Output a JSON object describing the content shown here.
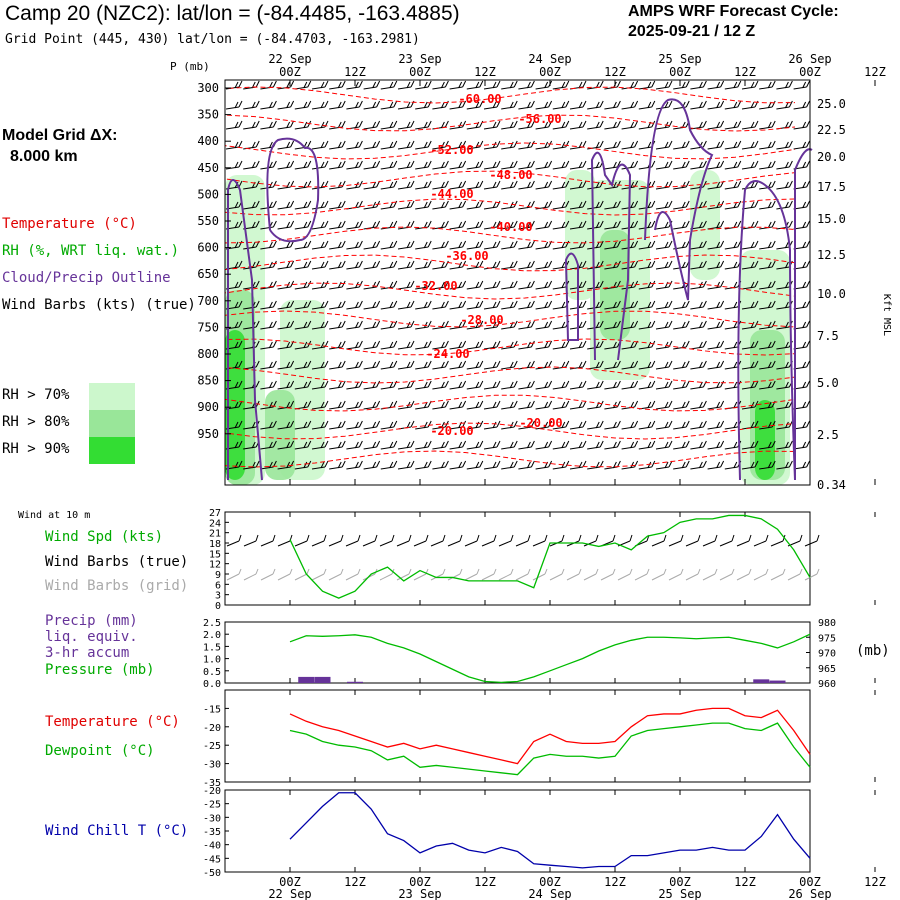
{
  "header": {
    "title": "Camp 20 (NZC2):  lat/lon = (-84.4485, -163.4885)",
    "grid_point": "Grid Point (445, 430) lat/lon = (-84.4703, -163.2981)",
    "cycle_label": "AMPS WRF Forecast Cycle:",
    "cycle_value": "2025-09-21 / 12  Z"
  },
  "model_grid": {
    "label": "Model Grid ΔX:",
    "value": "8.000 km"
  },
  "legend_upper": {
    "temperature": "Temperature (°C)",
    "rh": "RH (%, WRT liq. wat.)",
    "cloud": "Cloud/Precip Outline",
    "wind": "Wind Barbs (kts) (true)",
    "rh70": "RH > 70%",
    "rh80": "RH > 80%",
    "rh90": "RH > 90%"
  },
  "legend_wind10": {
    "title": "Wind at 10 m",
    "spd": "Wind Spd (kts)",
    "barbs_true": "Wind Barbs (true)",
    "barbs_grid": "Wind Barbs (grid)"
  },
  "legend_precip": {
    "precip": "Precip (mm)",
    "liq": "liq. equiv.",
    "accum": "3-hr accum",
    "pressure": "Pressure (mb)",
    "mb_unit": "(mb)"
  },
  "legend_temp": {
    "temperature": "Temperature (°C)",
    "dewpoint": "Dewpoint (°C)"
  },
  "legend_chill": {
    "chill": "Wind Chill T (°C)"
  },
  "time_axis": {
    "top_axis_label": "P (mb)",
    "hour_labels": [
      "00Z",
      "12Z",
      "00Z",
      "12Z",
      "00Z",
      "12Z",
      "00Z",
      "12Z",
      "00Z",
      "12Z"
    ],
    "day_labels": [
      "22 Sep",
      "23 Sep",
      "24 Sep",
      "25 Sep",
      "26 Sep"
    ]
  },
  "colors": {
    "temperature": "#ff0000",
    "rh70": "#ccf7cc",
    "rh80": "#99e699",
    "rh90": "#33dd33",
    "cloud": "#663399",
    "wind_spd": "#00bb00",
    "wind_grid": "#aaaaaa",
    "precip": "#663399",
    "pressure": "#00bb00",
    "dewpoint": "#00bb00",
    "wind_chill": "#0000aa"
  },
  "chart_data": [
    {
      "type": "heatmap",
      "panel": "upper-air time-height",
      "ylabel": "P (mb)",
      "y2label": "Kft MSL",
      "pressure_ticks": [
        "300",
        "350",
        "400",
        "450",
        "500",
        "550",
        "600",
        "650",
        "700",
        "750",
        "800",
        "850",
        "900",
        "950"
      ],
      "height_ticks": [
        "25.0",
        "22.5",
        "20.0",
        "17.5",
        "15.0",
        "12.5",
        "10.0",
        "7.5",
        "5.0",
        "2.5",
        "0.34"
      ],
      "temperature_contour_labels": [
        "-60.00",
        "-56.00",
        "-52.00",
        "-48.00",
        "-44.00",
        "-40.00",
        "-36.00",
        "-32.00",
        "-28.00",
        "-24.00",
        "-20.00",
        "-20.00"
      ]
    },
    {
      "type": "line",
      "panel": "10 m wind speed",
      "yticks": [
        "27",
        "24",
        "21",
        "18",
        "15",
        "12",
        "9",
        "6",
        "3",
        "0"
      ],
      "ylim": [
        0,
        27
      ],
      "series": [
        {
          "name": "Wind Spd (kts)",
          "x": [
            0,
            3,
            6,
            9,
            12,
            15,
            18,
            21,
            24,
            27,
            30,
            33,
            36,
            39,
            42,
            45,
            48,
            51,
            54,
            57,
            60,
            63,
            66,
            69,
            72,
            75,
            78,
            81,
            84,
            87,
            90,
            93,
            96
          ],
          "values": [
            19,
            9,
            4,
            2,
            4,
            9,
            11,
            7,
            10,
            8,
            8,
            7,
            7,
            7,
            7,
            5,
            18,
            18,
            18,
            17,
            18,
            16,
            20,
            21,
            24,
            25,
            25,
            26,
            26,
            25,
            22,
            16,
            8
          ]
        }
      ]
    },
    {
      "type": "line",
      "panel": "precipitation and pressure",
      "yticks_left": [
        "2.5",
        "2.0",
        "1.5",
        "1.0",
        "0.5",
        "0.0"
      ],
      "yticks_right": [
        "980",
        "975",
        "970",
        "965",
        "960"
      ],
      "ylim_left": [
        0,
        2.5
      ],
      "ylim_right": [
        960,
        980
      ],
      "series": [
        {
          "name": "Pressure (mb)",
          "x": [
            0,
            3,
            6,
            9,
            12,
            15,
            18,
            21,
            24,
            27,
            30,
            33,
            36,
            39,
            42,
            45,
            48,
            51,
            54,
            57,
            60,
            63,
            66,
            69,
            72,
            75,
            78,
            81,
            84,
            87,
            90,
            93,
            96
          ],
          "values": [
            973.5,
            975.5,
            975.3,
            975.5,
            975.8,
            975,
            973,
            971.5,
            969.5,
            967,
            964.5,
            962,
            960.5,
            960.2,
            960.5,
            962,
            964,
            966,
            968,
            970.5,
            972.5,
            974,
            975,
            975,
            974.8,
            974.5,
            974.8,
            975,
            974,
            973,
            971.5,
            973.5,
            976
          ]
        },
        {
          "name": "Precip (mm)",
          "x": [
            3,
            6,
            12,
            87,
            90
          ],
          "values": [
            0.25,
            0.25,
            0.05,
            0.15,
            0.1
          ]
        }
      ]
    },
    {
      "type": "line",
      "panel": "temperature and dewpoint",
      "yticks": [
        "-15",
        "-20",
        "-25",
        "-30",
        "-35"
      ],
      "ylim": [
        -35,
        -10
      ],
      "series": [
        {
          "name": "Temperature (°C)",
          "x": [
            0,
            3,
            6,
            9,
            12,
            15,
            18,
            21,
            24,
            27,
            30,
            33,
            36,
            39,
            42,
            45,
            48,
            51,
            54,
            57,
            60,
            63,
            66,
            69,
            72,
            75,
            78,
            81,
            84,
            87,
            90,
            93,
            96
          ],
          "values": [
            -16.5,
            -18.5,
            -20,
            -21,
            -22.5,
            -24,
            -25.5,
            -24.5,
            -26,
            -25,
            -26,
            -27,
            -28,
            -29,
            -30,
            -24,
            -22,
            -24,
            -24.5,
            -24.5,
            -24,
            -20,
            -17,
            -16.5,
            -16.5,
            -15.5,
            -15,
            -15,
            -17,
            -17.5,
            -15.5,
            -21,
            -27.5
          ]
        },
        {
          "name": "Dewpoint (°C)",
          "x": [
            0,
            3,
            6,
            9,
            12,
            15,
            18,
            21,
            24,
            27,
            30,
            33,
            36,
            39,
            42,
            45,
            48,
            51,
            54,
            57,
            60,
            63,
            66,
            69,
            72,
            75,
            78,
            81,
            84,
            87,
            90,
            93,
            96
          ],
          "values": [
            -21,
            -22,
            -24,
            -25,
            -25.5,
            -26.5,
            -29,
            -28,
            -31,
            -30.5,
            -31,
            -31.5,
            -32,
            -32.5,
            -33,
            -28.5,
            -27.5,
            -28,
            -28,
            -28.5,
            -28,
            -22.5,
            -21,
            -20.5,
            -20,
            -19.5,
            -19,
            -19,
            -20.5,
            -21,
            -19,
            -25.5,
            -31
          ]
        }
      ]
    },
    {
      "type": "line",
      "panel": "wind chill",
      "yticks": [
        "-20",
        "-25",
        "-30",
        "-35",
        "-40",
        "-45",
        "-50"
      ],
      "ylim": [
        -50,
        -20
      ],
      "series": [
        {
          "name": "Wind Chill T (°C)",
          "x": [
            0,
            3,
            6,
            9,
            12,
            15,
            18,
            21,
            24,
            27,
            30,
            33,
            36,
            39,
            42,
            45,
            48,
            51,
            54,
            57,
            60,
            63,
            66,
            69,
            72,
            75,
            78,
            81,
            84,
            87,
            90,
            93,
            96
          ],
          "values": [
            -38,
            -32,
            -26,
            -21,
            -21,
            -27,
            -36,
            -38.5,
            -43,
            -40.5,
            -39.5,
            -42,
            -43,
            -41,
            -42.5,
            -47,
            -47.5,
            -48,
            -48.5,
            -48,
            -48,
            -44,
            -44,
            -43,
            -42,
            -42,
            -41,
            -42,
            -42,
            -37,
            -29,
            -38,
            -45
          ]
        }
      ]
    }
  ]
}
